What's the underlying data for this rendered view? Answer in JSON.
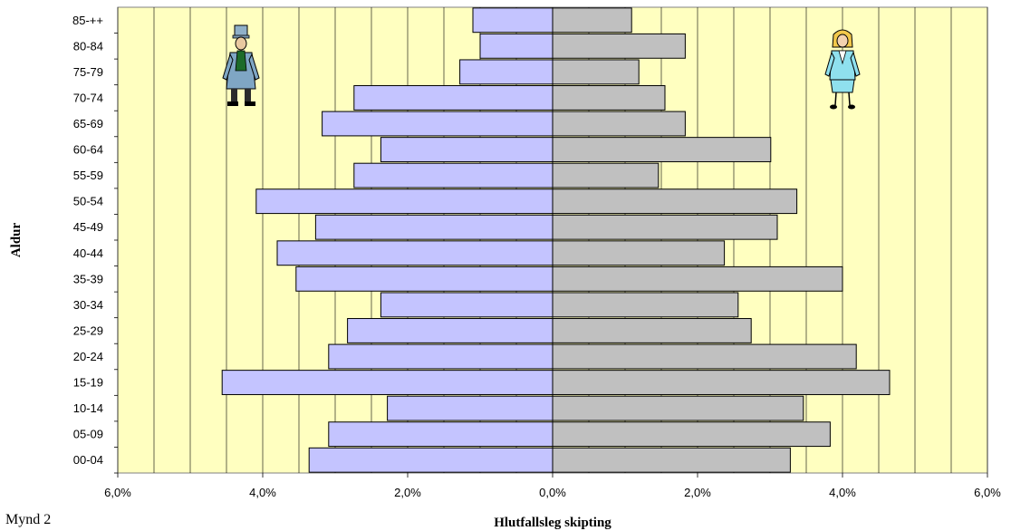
{
  "chart_data": {
    "type": "bar",
    "orientation": "horizontal-population-pyramid",
    "categories": [
      "00-04",
      "05-09",
      "10-14",
      "15-19",
      "20-24",
      "25-29",
      "30-34",
      "35-39",
      "40-44",
      "45-49",
      "50-54",
      "55-59",
      "60-64",
      "65-69",
      "70-74",
      "75-79",
      "80-84",
      "85-++"
    ],
    "series": [
      {
        "values": [
          3.36,
          3.09,
          2.28,
          4.56,
          3.09,
          2.83,
          2.37,
          3.54,
          3.8,
          3.27,
          4.09,
          2.74,
          2.37,
          3.18,
          2.74,
          1.28,
          1.0,
          1.1
        ]
      },
      {
        "values": [
          3.28,
          3.83,
          3.46,
          4.65,
          4.19,
          2.74,
          2.56,
          4.0,
          2.37,
          3.1,
          3.37,
          1.46,
          3.01,
          1.83,
          1.55,
          1.19,
          1.83,
          1.09
        ]
      }
    ],
    "xlim": [
      -6,
      6
    ],
    "xticks": [
      -6,
      -4,
      -2,
      0,
      2,
      4,
      6
    ],
    "xtick_labels": [
      "6,0%",
      "4,0%",
      "2,0%",
      "0,0%",
      "2,0%",
      "4,0%",
      "6,0%"
    ],
    "xlabel": "Hlutfallsleg skipting",
    "ylabel": "Aldur",
    "grid": true
  },
  "caption": "Mynd 2",
  "colors": {
    "plot_background": "#ffffc0",
    "left_bar": "#c4c4ff",
    "right_bar": "#c0c0c0",
    "gridline": "#000000"
  },
  "icons": {
    "left": "man-figure-icon",
    "right": "woman-figure-icon"
  }
}
